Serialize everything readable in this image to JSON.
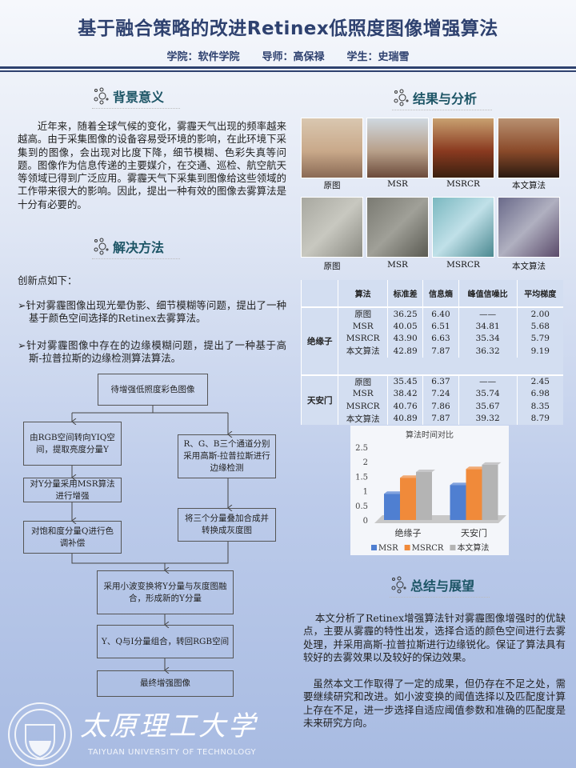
{
  "header": {
    "title": "基于融合策略的改进Retinex低照度图像增强算法",
    "college": "学院：软件学院",
    "advisor": "导师：高保禄",
    "student": "学生：史瑞雪"
  },
  "background": {
    "heading": "背景意义",
    "text": "近年来，随着全球气候的变化，雾霾天气出现的频率越来越高。由于采集图像的设备容易受环境的影响，在此环境下采集到的图像，会出现对比度下降，细节模糊、色彩失真等问题。图像作为信息传递的主要媒介，在交通、巡检、航空航天等领域已得到广泛应用。雾霾天气下采集到图像给这些领域的工作带来很大的影响。因此，提出一种有效的图像去雾算法是十分有必要的。"
  },
  "method": {
    "heading": "解决方法",
    "intro": "创新点如下：",
    "bullets": [
      "针对雾霾图像出现光晕伪影、细节模糊等问题，提出了一种基于颜色空间选择的Retinex去雾算法。",
      "针对雾霾图像中存在的边缘模糊问题，提出了一种基于高斯-拉普拉斯的边缘检测算法算法。"
    ],
    "flow": {
      "start": "待增强低照度彩色图像",
      "left1": "由RGB空间转向YIQ空间，提取亮度分量Y",
      "left2": "对Y分量采用MSR算法进行增强",
      "left3": "对饱和度分量Q进行色调补偿",
      "right1": "R、G、B三个通道分别采用高斯-拉普拉斯进行边缘检测",
      "right2": "将三个分量叠加合成并转换成灰度图",
      "merge": "采用小波变换将Y分量与灰度图融合，形成新的Y分量",
      "combine": "Y、Q与I分量组合，转回RGB空间",
      "end": "最终增强图像"
    }
  },
  "results": {
    "heading": "结果与分析",
    "captions": [
      "原图",
      "MSR",
      "MSRCR",
      "本文算法"
    ],
    "table": {
      "headers": [
        "",
        "算法",
        "标准差",
        "信息熵",
        "峰值信噪比",
        "平均梯度"
      ],
      "groups": [
        {
          "name": "绝缘子",
          "rows": [
            [
              "原图",
              "36.25",
              "6.40",
              "——",
              "2.00"
            ],
            [
              "MSR",
              "40.05",
              "6.51",
              "34.81",
              "5.68"
            ],
            [
              "MSRCR",
              "43.90",
              "6.63",
              "35.34",
              "5.79"
            ],
            [
              "本文算法",
              "42.89",
              "7.87",
              "36.32",
              "9.19"
            ]
          ]
        },
        {
          "name": "天安门",
          "rows": [
            [
              "原图",
              "35.45",
              "6.37",
              "——",
              "2.45"
            ],
            [
              "MSR",
              "38.42",
              "7.24",
              "35.74",
              "6.98"
            ],
            [
              "MSRCR",
              "40.76",
              "7.86",
              "35.67",
              "8.35"
            ],
            [
              "本文算法",
              "40.89",
              "7.87",
              "39.32",
              "8.79"
            ]
          ]
        }
      ]
    }
  },
  "chart_data": {
    "type": "bar",
    "title": "算法时间对比",
    "categories": [
      "绝缘子",
      "天安门"
    ],
    "ylim": [
      0,
      2.5
    ],
    "yticks": [
      "0",
      "0.5",
      "1",
      "1.5",
      "2",
      "2.5"
    ],
    "legend": "bottom",
    "series": [
      {
        "name": "MSR",
        "values": [
          0.9,
          1.2
        ],
        "color": "#4f7fd1"
      },
      {
        "name": "MSRCR",
        "values": [
          1.45,
          1.75
        ],
        "color": "#f08a3a"
      },
      {
        "name": "本文算法",
        "values": [
          1.65,
          1.9
        ],
        "color": "#b4b4b4"
      }
    ]
  },
  "summary": {
    "heading": "总结与展望",
    "p1": "本文分析了Retinex增强算法针对雾霾图像增强时的优缺点，主要从雾霾的特性出发，选择合适的颜色空间进行去雾处理，并采用高斯-拉普拉斯进行边缘锐化。保证了算法具有较好的去雾效果以及较好的保边效果。",
    "p2": "虽然本文工作取得了一定的成果，但仍存在不足之处，需要继续研究和改进。如小波变换的阈值选择以及匹配度计算上存在不足，进一步选择自适应阈值参数和准确的匹配度是未来研究方向。"
  },
  "logo": {
    "name_cn": "太原理工大学",
    "name_en": "TAIYUAN UNIVERSITY OF TECHNOLOGY",
    "year": "1902"
  }
}
